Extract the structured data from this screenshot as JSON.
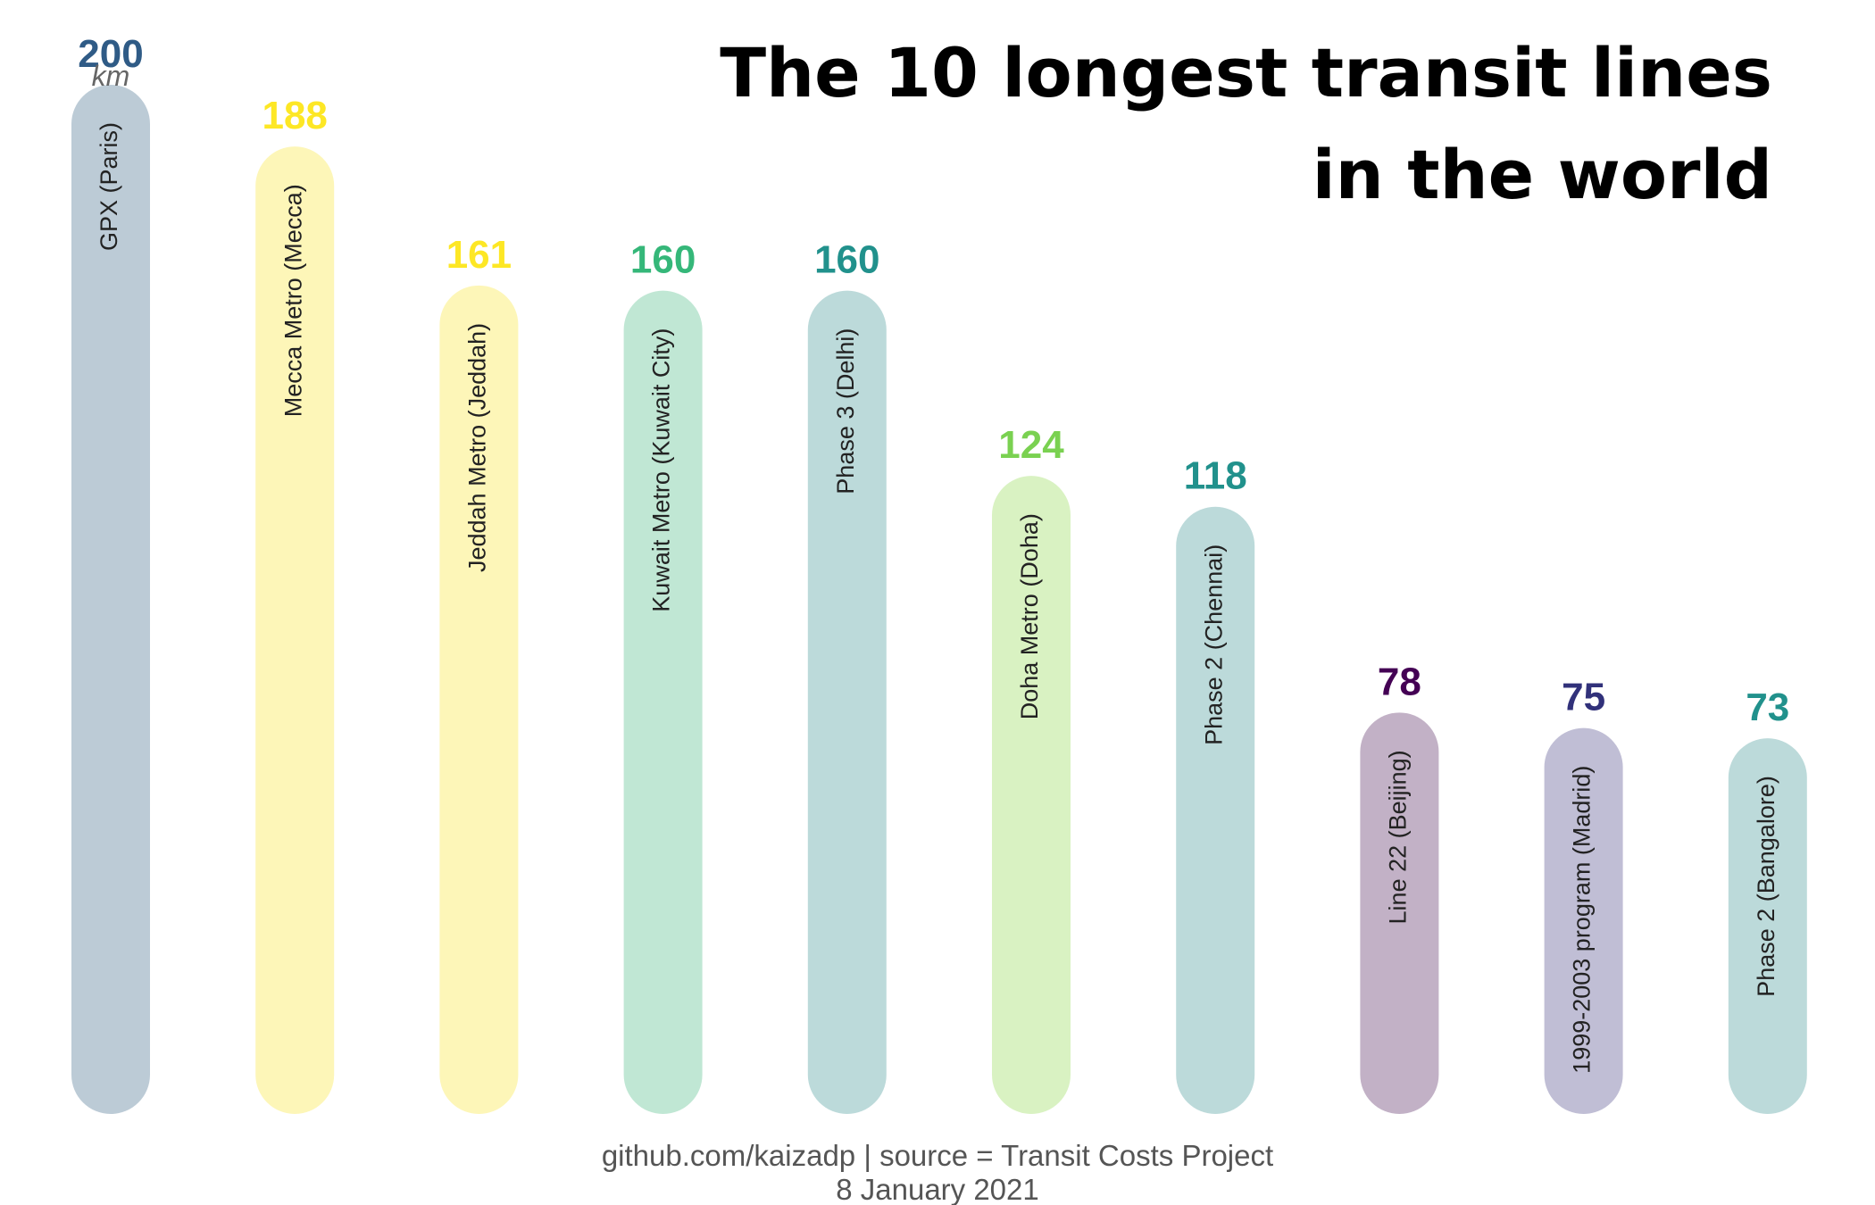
{
  "chart_data": {
    "type": "bar",
    "title_lines": [
      "The 10 longest transit lines",
      "in the world"
    ],
    "unit": "km",
    "ylim": [
      0,
      200
    ],
    "categories": [
      "GPX (Paris)",
      "Mecca Metro (Mecca)",
      "Jeddah Metro (Jeddah)",
      "Kuwait Metro (Kuwait City)",
      "Phase 3 (Delhi)",
      "Doha Metro (Doha)",
      "Phase 2 (Chennai)",
      "Line 22 (Beijing)",
      "1999-2003 program (Madrid)",
      "Phase 2 (Bangalore)"
    ],
    "values": [
      200,
      188,
      161,
      160,
      160,
      124,
      118,
      78,
      75,
      73
    ],
    "value_colors": [
      "#2f5b86",
      "#fde725",
      "#fde725",
      "#35b779",
      "#21918c",
      "#7ad151",
      "#21918c",
      "#440154",
      "#31317a",
      "#21918c"
    ],
    "bar_colors": [
      "#bccbd6",
      "#fdf6b8",
      "#fdf6b8",
      "#c0e7d4",
      "#bcdada",
      "#d9f2c2",
      "#bcdada",
      "#c2b1c6",
      "#c0bed5",
      "#bcdada"
    ],
    "caption_lines": [
      "github.com/kaizadp | source = Transit Costs Project",
      "8 January 2021"
    ]
  }
}
